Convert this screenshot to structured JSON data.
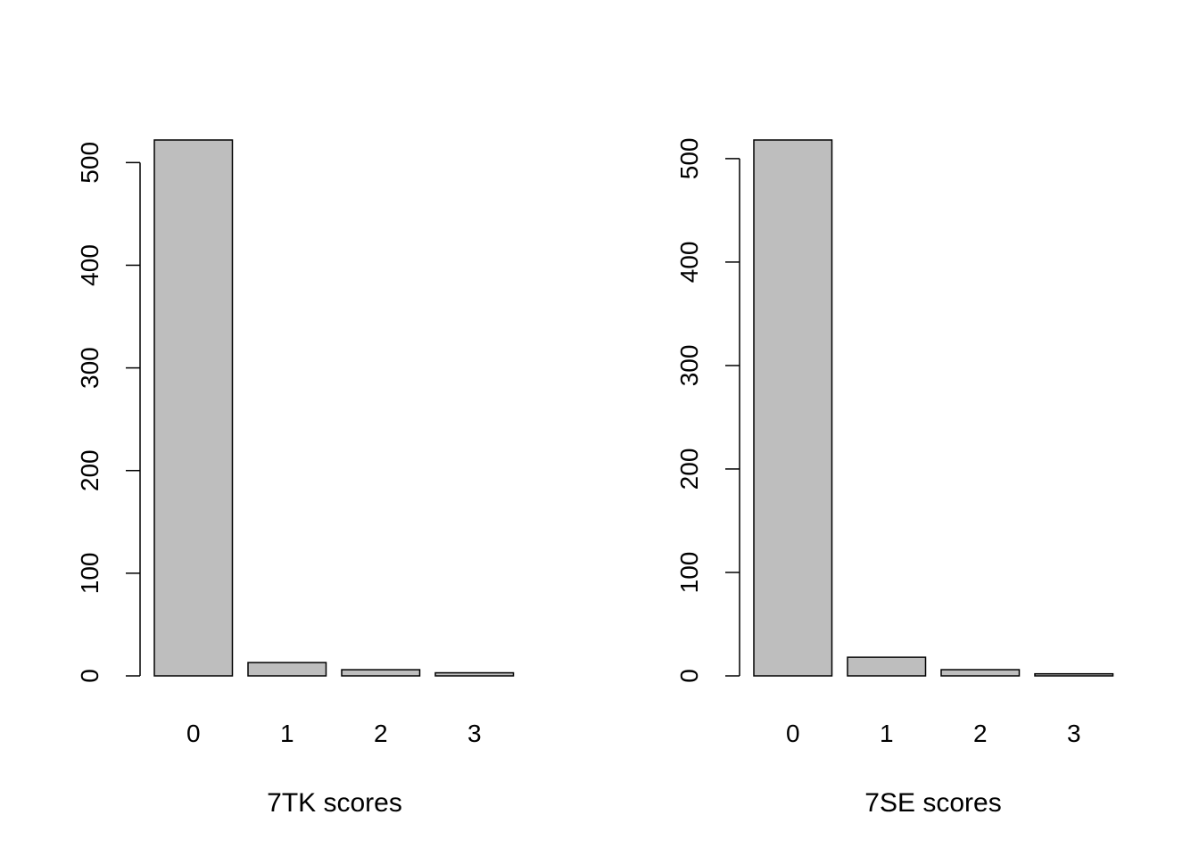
{
  "chart_data": [
    {
      "type": "bar",
      "xlabel": "7TK scores",
      "ylabel": "",
      "title": "",
      "categories": [
        "0",
        "1",
        "2",
        "3"
      ],
      "values": [
        522,
        13,
        6,
        3
      ],
      "ylim": [
        0,
        522
      ],
      "yticks": [
        0,
        100,
        200,
        300,
        400,
        500
      ],
      "grid": false,
      "bar_color": "#bebebe"
    },
    {
      "type": "bar",
      "xlabel": "7SE scores",
      "ylabel": "",
      "title": "",
      "categories": [
        "0",
        "1",
        "2",
        "3"
      ],
      "values": [
        518,
        18,
        6,
        2
      ],
      "ylim": [
        0,
        518
      ],
      "yticks": [
        0,
        100,
        200,
        300,
        400,
        500
      ],
      "grid": false,
      "bar_color": "#bebebe"
    }
  ]
}
